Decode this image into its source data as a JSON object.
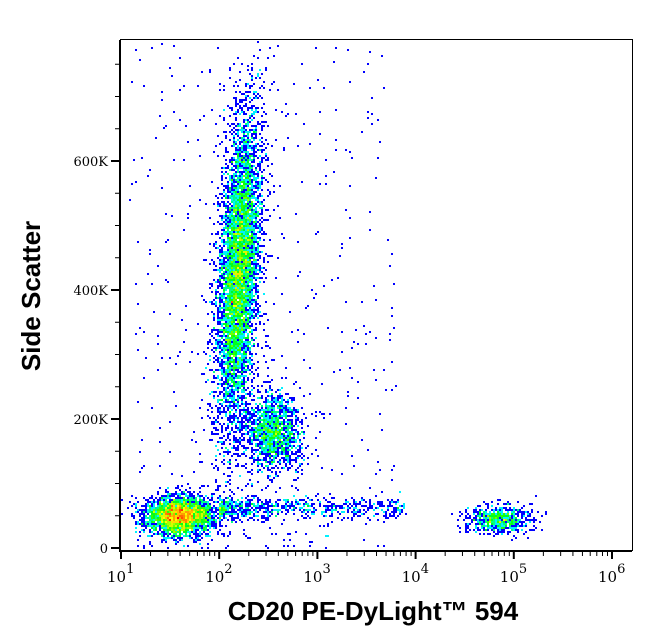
{
  "chart_data": {
    "type": "scatter",
    "subtype": "flow-cytometry-density-dot-plot",
    "xlabel": "CD20 PE-DyLight™ 594",
    "ylabel": "Side Scatter",
    "x_scale": "log",
    "xlim_log10": [
      1,
      6.2
    ],
    "ylim": [
      0,
      790000
    ],
    "x_ticks": [
      {
        "base": "10",
        "exp": "1",
        "value": 10
      },
      {
        "base": "10",
        "exp": "2",
        "value": 100
      },
      {
        "base": "10",
        "exp": "3",
        "value": 1000
      },
      {
        "base": "10",
        "exp": "4",
        "value": 10000
      },
      {
        "base": "10",
        "exp": "5",
        "value": 100000
      },
      {
        "base": "10",
        "exp": "6",
        "value": 1000000
      }
    ],
    "y_ticks": [
      {
        "label": "0",
        "value": 0
      },
      {
        "label": "200K",
        "value": 200000
      },
      {
        "label": "400K",
        "value": 400000
      },
      {
        "label": "600K",
        "value": 600000
      }
    ],
    "y_minor_step": 50000,
    "colormap": [
      "#0000ff",
      "#00ffff",
      "#00ff00",
      "#ffff00",
      "#ff0000"
    ],
    "populations": [
      {
        "name": "CD20- low SSC",
        "log10_x_center": 1.6,
        "log10_x_sd": 0.17,
        "y_center": 50000,
        "y_sd": 15000,
        "count": 3200
      },
      {
        "name": "CD20- high SSC (elongated)",
        "log10_x_center": 2.2,
        "log10_x_sd": 0.1,
        "y_center": 430000,
        "y_sd": 120000,
        "x_slope_per_100K": 0.035,
        "count": 6500
      },
      {
        "name": "CD20- mid SSC",
        "log10_x_center": 2.55,
        "log10_x_sd": 0.14,
        "y_center": 180000,
        "y_sd": 30000,
        "count": 1500
      },
      {
        "name": "low SSC stream",
        "log10_x_range": [
          2.0,
          3.9
        ],
        "y_center": 62000,
        "y_sd": 9000,
        "count": 700
      },
      {
        "name": "CD20+ B cells",
        "log10_x_center": 4.85,
        "log10_x_sd": 0.16,
        "y_center": 45000,
        "y_sd": 11000,
        "count": 700
      },
      {
        "name": "background",
        "log10_x_range": [
          1.1,
          3.8
        ],
        "y_range": [
          0,
          780000
        ],
        "count": 500
      }
    ]
  }
}
